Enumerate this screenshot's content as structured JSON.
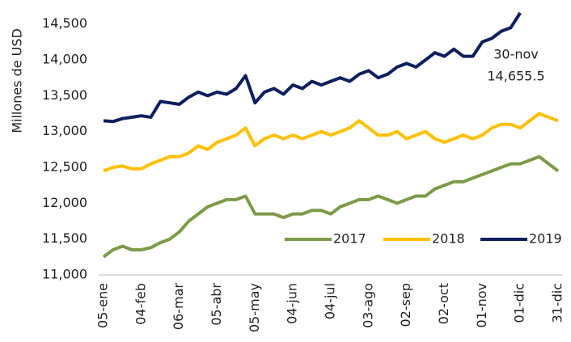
{
  "chart_data": {
    "type": "line",
    "y_label": "Millones de USD",
    "categories": [
      "05-ene",
      null,
      null,
      null,
      "04-feb",
      null,
      null,
      null,
      "06-mar",
      null,
      null,
      null,
      "05-abr",
      null,
      null,
      null,
      "05-may",
      null,
      null,
      null,
      "04-jun",
      null,
      null,
      null,
      "04-jul",
      null,
      null,
      null,
      "03-ago",
      null,
      null,
      null,
      "02-sep",
      null,
      null,
      null,
      "02-oct",
      null,
      null,
      null,
      "01-nov",
      null,
      null,
      null,
      "01-dic",
      null,
      null,
      null,
      "31-dic"
    ],
    "series": [
      {
        "name": "2017",
        "color": "#7d9a48",
        "values": [
          11250,
          11350,
          11400,
          11350,
          11350,
          11380,
          11450,
          11500,
          11600,
          11750,
          11850,
          11950,
          12000,
          12050,
          12050,
          12100,
          11850,
          11850,
          11850,
          11800,
          11850,
          11850,
          11900,
          11900,
          11850,
          11950,
          12000,
          12050,
          12050,
          12100,
          12050,
          12000,
          12050,
          12100,
          12100,
          12200,
          12250,
          12300,
          12300,
          12350,
          12400,
          12450,
          12500,
          12550,
          12550,
          12600,
          12650,
          12550,
          12450
        ]
      },
      {
        "name": "2018",
        "color": "#ffc000",
        "values": [
          12450,
          12500,
          12520,
          12480,
          12480,
          12550,
          12600,
          12650,
          12650,
          12700,
          12800,
          12750,
          12850,
          12900,
          12950,
          13050,
          12800,
          12900,
          12950,
          12900,
          12950,
          12900,
          12950,
          13000,
          12950,
          13000,
          13050,
          13150,
          13050,
          12950,
          12950,
          13000,
          12900,
          12950,
          13000,
          12900,
          12850,
          12900,
          12950,
          12900,
          12950,
          13050,
          13100,
          13100,
          13050,
          13150,
          13250,
          13200,
          13150
        ]
      },
      {
        "name": "2019",
        "color": "#0d1f5c",
        "values": [
          13150,
          13140,
          13180,
          13200,
          13220,
          13200,
          13420,
          13400,
          13380,
          13480,
          13550,
          13500,
          13550,
          13520,
          13600,
          13780,
          13400,
          13550,
          13600,
          13520,
          13650,
          13600,
          13700,
          13650,
          13700,
          13750,
          13700,
          13800,
          13850,
          13750,
          13800,
          13900,
          13950,
          13900,
          14000,
          14100,
          14050,
          14150,
          14050,
          14050,
          14250,
          14300,
          14400,
          14450,
          14655.5,
          null,
          null,
          null,
          null
        ]
      }
    ],
    "annotation": [
      "30-nov",
      "14,655.5"
    ],
    "ylim": [
      11000,
      14700
    ],
    "yticks": [
      {
        "value": 11000,
        "label": "11,000"
      },
      {
        "value": 11500,
        "label": "11,500"
      },
      {
        "value": 12000,
        "label": "12,000"
      },
      {
        "value": 12500,
        "label": "12,500"
      },
      {
        "value": 13000,
        "label": "13,000"
      },
      {
        "value": 13500,
        "label": "13,500"
      },
      {
        "value": 14000,
        "label": "14,000"
      },
      {
        "value": 14500,
        "label": "14,500"
      }
    ],
    "legend": "bottom-right"
  }
}
